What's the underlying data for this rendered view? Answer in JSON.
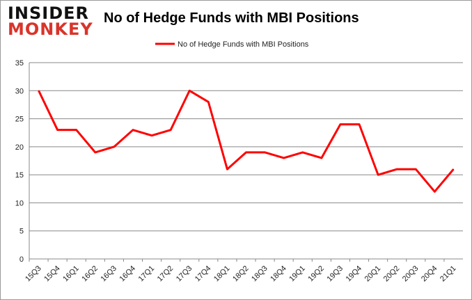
{
  "logo": {
    "line1": "INSIDER",
    "line2": "MONKEY"
  },
  "chart_data": {
    "type": "line",
    "title": "No of Hedge Funds with MBI Positions",
    "xlabel": "",
    "ylabel": "",
    "ylim": [
      0,
      35
    ],
    "yticks": [
      0,
      5,
      10,
      15,
      20,
      25,
      30,
      35
    ],
    "grid": true,
    "legend": "top-center",
    "categories": [
      "15Q3",
      "15Q4",
      "16Q1",
      "16Q2",
      "16Q3",
      "16Q4",
      "17Q1",
      "17Q2",
      "17Q3",
      "17Q4",
      "18Q1",
      "18Q2",
      "18Q3",
      "18Q4",
      "19Q1",
      "19Q2",
      "19Q3",
      "19Q4",
      "20Q1",
      "20Q2",
      "20Q3",
      "20Q4",
      "21Q1"
    ],
    "series": [
      {
        "name": "No of Hedge Funds with MBI Positions",
        "color": "#ff0000",
        "values": [
          30,
          23,
          23,
          19,
          20,
          23,
          22,
          23,
          30,
          28,
          16,
          19,
          19,
          18,
          19,
          18,
          24,
          24,
          15,
          16,
          16,
          12,
          16
        ]
      }
    ]
  }
}
